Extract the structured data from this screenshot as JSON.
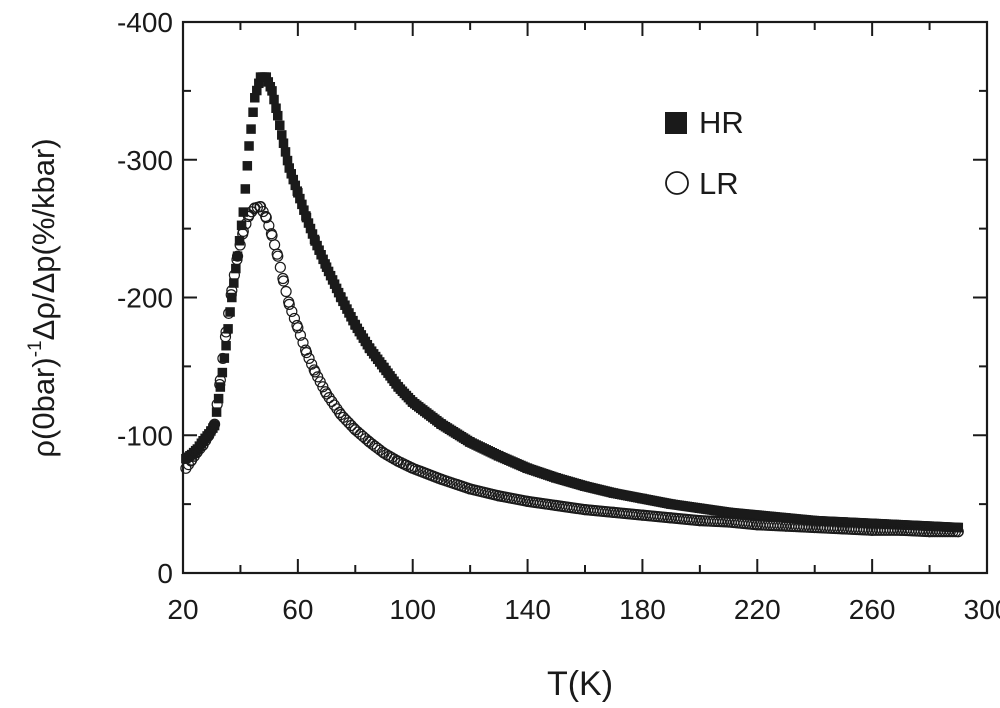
{
  "chart_data": {
    "type": "scatter",
    "title": "",
    "xlabel": "T(K)",
    "ylabel_main": "ρ(0bar)",
    "ylabel_sup": "-1",
    "ylabel_rest": "Δρ/Δp(%/kbar)",
    "xlim": [
      20,
      300
    ],
    "ylim": [
      0,
      -400
    ],
    "xticks": [
      20,
      60,
      100,
      140,
      180,
      220,
      260,
      300
    ],
    "yticks": [
      0,
      -100,
      -200,
      -300,
      -400
    ],
    "grid": false,
    "legend_position": "top-right",
    "series": [
      {
        "name": "HR",
        "marker": "filled-square",
        "x": [
          21,
          23,
          25,
          27,
          29,
          31,
          33,
          35,
          37,
          39,
          41,
          43,
          45,
          47,
          49,
          51,
          53,
          55,
          57,
          60,
          63,
          66,
          70,
          75,
          80,
          85,
          90,
          95,
          100,
          110,
          120,
          130,
          140,
          150,
          160,
          170,
          180,
          190,
          200,
          210,
          220,
          230,
          240,
          250,
          260,
          270,
          280,
          290
        ],
        "y": [
          -83,
          -86,
          -90,
          -96,
          -101,
          -107,
          -135,
          -165,
          -200,
          -230,
          -262,
          -310,
          -345,
          -360,
          -360,
          -350,
          -332,
          -312,
          -294,
          -276,
          -258,
          -241,
          -222,
          -200,
          -180,
          -163,
          -149,
          -135,
          -124,
          -108,
          -95,
          -85,
          -76,
          -69,
          -63,
          -58,
          -54,
          -50,
          -47,
          -44,
          -42,
          -40,
          -38,
          -37,
          -36,
          -35,
          -34,
          -33
        ]
      },
      {
        "name": "LR",
        "marker": "open-circle",
        "x": [
          21,
          23,
          25,
          27,
          29,
          31,
          33,
          35,
          37,
          39,
          41,
          43,
          45,
          47,
          49,
          51,
          53,
          55,
          57,
          60,
          63,
          66,
          70,
          75,
          80,
          85,
          90,
          95,
          100,
          110,
          120,
          130,
          140,
          150,
          160,
          170,
          180,
          190,
          200,
          210,
          220,
          230,
          240,
          250,
          260,
          270,
          280,
          290
        ],
        "y": [
          -76,
          -82,
          -88,
          -93,
          -100,
          -108,
          -140,
          -175,
          -205,
          -230,
          -248,
          -260,
          -265,
          -266,
          -258,
          -245,
          -230,
          -212,
          -195,
          -178,
          -160,
          -146,
          -130,
          -115,
          -104,
          -95,
          -87,
          -81,
          -76,
          -68,
          -61,
          -56,
          -52,
          -49,
          -46,
          -44,
          -42,
          -40,
          -38,
          -37,
          -35,
          -34,
          -33,
          -32,
          -31,
          -31,
          -30,
          -30
        ]
      }
    ]
  }
}
